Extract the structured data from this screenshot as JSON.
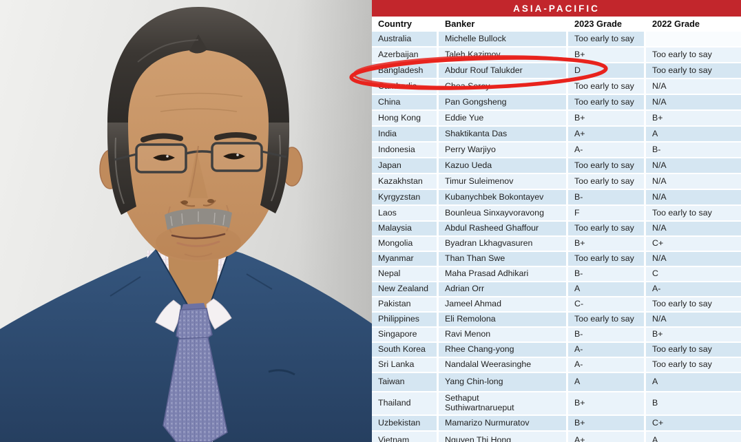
{
  "photo": {
    "subject": "portrait-of-bangladesh-central-bank-governor",
    "appearance": "man in navy suit, rectangular glasses, gray mustache, lavender checked tie, striped shirt"
  },
  "panel": {
    "title": "ASIA-PACIFIC",
    "columns": [
      "Country",
      "Banker",
      "2023 Grade",
      "2022 Grade"
    ],
    "rows": [
      [
        "Australia",
        "Michelle Bullock",
        "Too early to say",
        ""
      ],
      [
        "Azerbaijan",
        "Taleh Kazimov",
        "B+",
        "Too early to say"
      ],
      [
        "Bangladesh",
        "Abdur Rouf Talukder",
        "D",
        "Too early to say"
      ],
      [
        "Cambodia",
        "Chea Serey",
        "Too early to say",
        "N/A"
      ],
      [
        "China",
        "Pan Gongsheng",
        "Too early to say",
        "N/A"
      ],
      [
        "Hong Kong",
        "Eddie Yue",
        "B+",
        "B+"
      ],
      [
        "India",
        "Shaktikanta Das",
        "A+",
        "A"
      ],
      [
        "Indonesia",
        "Perry Warjiyo",
        "A-",
        "B-"
      ],
      [
        "Japan",
        "Kazuo Ueda",
        "Too early to say",
        "N/A"
      ],
      [
        "Kazakhstan",
        "Timur Suleimenov",
        "Too early to say",
        "N/A"
      ],
      [
        "Kyrgyzstan",
        "Kubanychbek Bokontayev",
        "B-",
        "N/A"
      ],
      [
        "Laos",
        "Bounleua Sinxayvoravong",
        "F",
        "Too early to say"
      ],
      [
        "Malaysia",
        "Abdul Rasheed Ghaffour",
        "Too early to say",
        "N/A"
      ],
      [
        "Mongolia",
        "Byadran Lkhagvasuren",
        "B+",
        "C+"
      ],
      [
        "Myanmar",
        "Than Than Swe",
        "Too early to say",
        "N/A"
      ],
      [
        "Nepal",
        "Maha Prasad Adhikari",
        "B-",
        "C"
      ],
      [
        "New Zealand",
        "Adrian Orr",
        "A",
        "A-"
      ],
      [
        "Pakistan",
        "Jameel Ahmad",
        "C-",
        "Too early to say"
      ],
      [
        "Philippines",
        "Eli Remolona",
        "Too early to say",
        "N/A"
      ],
      [
        "Singapore",
        "Ravi Menon",
        "B-",
        "B+"
      ],
      [
        "South Korea",
        "Rhee Chang-yong",
        "A-",
        "Too early to say"
      ],
      [
        "Sri Lanka",
        "Nandalal Weerasinghe",
        "A-",
        "Too early to say"
      ],
      [
        "Taiwan",
        "Yang Chin-long",
        "A",
        "A"
      ],
      [
        "Thailand",
        "Sethaput Suthiwartnarueput",
        "B+",
        "B"
      ],
      [
        "Uzbekistan",
        "Mamarizo Nurmuratov",
        "B+",
        "C+"
      ],
      [
        "Vietnam",
        "Nguyen Thi Hong",
        "A+",
        "A"
      ]
    ],
    "highlighted_country": "Bangladesh"
  },
  "colors": {
    "title_bg": "#c2262c",
    "row_dark": "#d5e6f2",
    "row_light": "#eaf3fa",
    "highlight_circle": "#e8231d"
  }
}
